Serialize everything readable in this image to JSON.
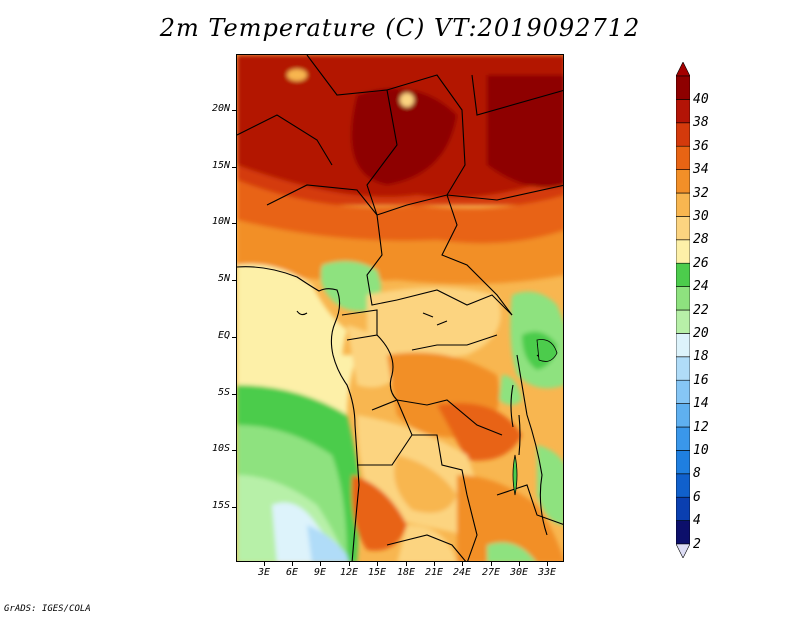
{
  "title": "2m Temperature (C) VT:2019092712",
  "credit": "GrADS: IGES/COLA",
  "lat_labels": [
    "20N",
    "15N",
    "10N",
    "5N",
    "EQ",
    "5S",
    "10S",
    "15S"
  ],
  "lon_labels": [
    "3E",
    "6E",
    "9E",
    "12E",
    "15E",
    "18E",
    "21E",
    "24E",
    "27E",
    "30E",
    "33E"
  ],
  "colorbar": {
    "labels": [
      "2",
      "4",
      "6",
      "8",
      "10",
      "12",
      "14",
      "16",
      "18",
      "20",
      "22",
      "24",
      "26",
      "28",
      "30",
      "32",
      "34",
      "36",
      "38",
      "40"
    ],
    "colors": [
      "#0c0f6b",
      "#0a3fb0",
      "#1060cc",
      "#1f7fe0",
      "#3a97ea",
      "#5fb0f0",
      "#86c6f5",
      "#b0dcf8",
      "#ddf3fb",
      "#b7f0a8",
      "#8ee27f",
      "#4ccc4c",
      "#fdf0a8",
      "#fcd480",
      "#f8b650",
      "#f28f28",
      "#e86414",
      "#d43a0c",
      "#b31406",
      "#8e0000"
    ],
    "low_color": "#ddddf5",
    "high_color": "#a40000"
  }
}
